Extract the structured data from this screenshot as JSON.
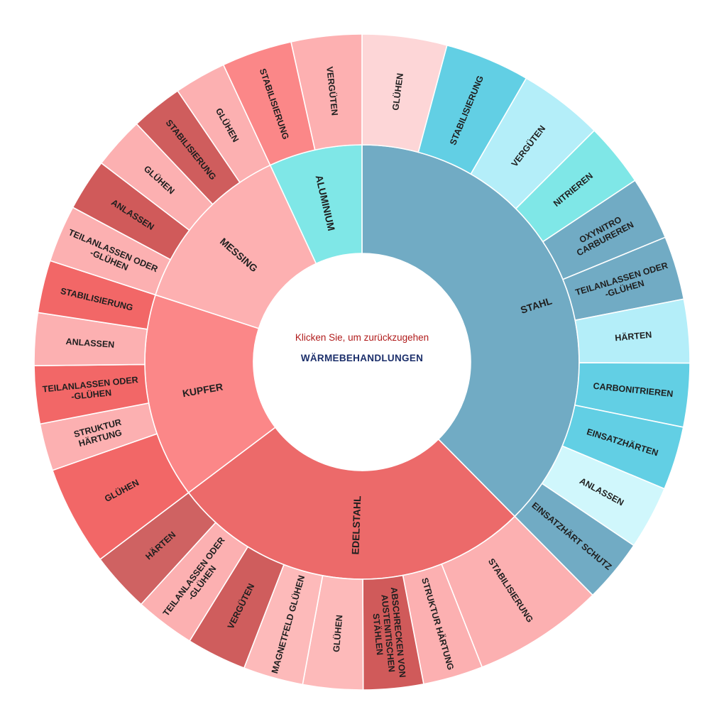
{
  "center": {
    "back_label": "Klicken Sie, um zurückzugehen",
    "title": "WÄRMEBEHANDLUNGEN"
  },
  "chart_data": {
    "type": "sunburst",
    "root": "WÄRMEBEHANDLUNGEN",
    "categories": [
      {
        "name": "STAHL",
        "color": "#71abc4",
        "children": [
          {
            "name": "GLÜHEN",
            "color": "#fdd6d7",
            "value": 1
          },
          {
            "name": "STABILISIERUNG",
            "color": "#62cfe4",
            "value": 1
          },
          {
            "name": "VERGÜTEN",
            "color": "#b4eef9",
            "value": 1
          },
          {
            "name": "NITRIEREN",
            "color": "#7fe7e7",
            "value": 0.75
          },
          {
            "name": "OXYNITRO CARBUREREN",
            "color": "#71abc4",
            "value": 0.75
          },
          {
            "name": "TEILANLASSEN ODER -GLÜHEN",
            "color": "#71abc4",
            "value": 0.75
          },
          {
            "name": "HÄRTEN",
            "color": "#b4eef9",
            "value": 0.75
          },
          {
            "name": "CARBONITRIEREN",
            "color": "#62cfe4",
            "value": 0.75
          },
          {
            "name": "EINSATZHÄRTEN",
            "color": "#62cfe4",
            "value": 0.75
          },
          {
            "name": "ANLASSEN",
            "color": "#d0f7fc",
            "value": 0.75
          },
          {
            "name": "EINSATZHÄRT SCHUTZ",
            "color": "#71abc4",
            "value": 0.75
          }
        ]
      },
      {
        "name": "EDELSTAHL",
        "color": "#ec6a6a",
        "children": [
          {
            "name": "STABILISIERUNG",
            "color": "#fcb0b1",
            "value": 1.2
          },
          {
            "name": "STRUKTUR HÄRTUNG",
            "color": "#fcb0b1",
            "value": 0.55
          },
          {
            "name": "ABSCHRECKEN VON AUSTENITISCHEN STÄHLEN",
            "color": "#d05a5a",
            "value": 0.55
          },
          {
            "name": "GLÜHEN",
            "color": "#fdbaba",
            "value": 0.55
          },
          {
            "name": "MAGNETFELD GLÜHEN",
            "color": "#fdbaba",
            "value": 0.55
          },
          {
            "name": "VERGÜTEN",
            "color": "#cf5d5d",
            "value": 0.55
          },
          {
            "name": "TEILANLASSEN ODER -GLÜHEN",
            "color": "#fcb0b1",
            "value": 0.55
          },
          {
            "name": "HÄRTEN",
            "color": "#cf6262",
            "value": 0.55
          }
        ]
      },
      {
        "name": "KUPFER",
        "color": "#fb8788",
        "children": [
          {
            "name": "GLÜHEN",
            "color": "#f26767",
            "value": 0.95
          },
          {
            "name": "STRUKTUR HÄRTUNG",
            "color": "#fcb0b1",
            "value": 0.45
          },
          {
            "name": "TEILANLASSEN ODER -GLÜHEN",
            "color": "#f26767",
            "value": 0.55
          },
          {
            "name": "ANLASSEN",
            "color": "#fcb0b1",
            "value": 0.5
          },
          {
            "name": "STABILISIERUNG",
            "color": "#f26767",
            "value": 0.5
          }
        ]
      },
      {
        "name": "MESSING",
        "color": "#fdb0b1",
        "children": [
          {
            "name": "TEILANLASSEN ODER -GLÜHEN",
            "color": "#fcb0b1",
            "value": 0.55
          },
          {
            "name": "ANLASSEN",
            "color": "#d05a5a",
            "value": 0.5
          },
          {
            "name": "GLÜHEN",
            "color": "#fcb0b1",
            "value": 0.5
          },
          {
            "name": "STABILISIERUNG",
            "color": "#cf5d5d",
            "value": 0.5
          },
          {
            "name": "GLÜHEN",
            "color": "#fcb0b1",
            "value": 0.5
          }
        ]
      },
      {
        "name": "ALUMINIUM",
        "color": "#7fe7e7",
        "children": [
          {
            "name": "STABILISIERUNG",
            "color": "#fb8788",
            "value": 0.5
          },
          {
            "name": "VERGÜTEN",
            "color": "#fdb0b1",
            "value": 0.5
          }
        ]
      }
    ]
  }
}
